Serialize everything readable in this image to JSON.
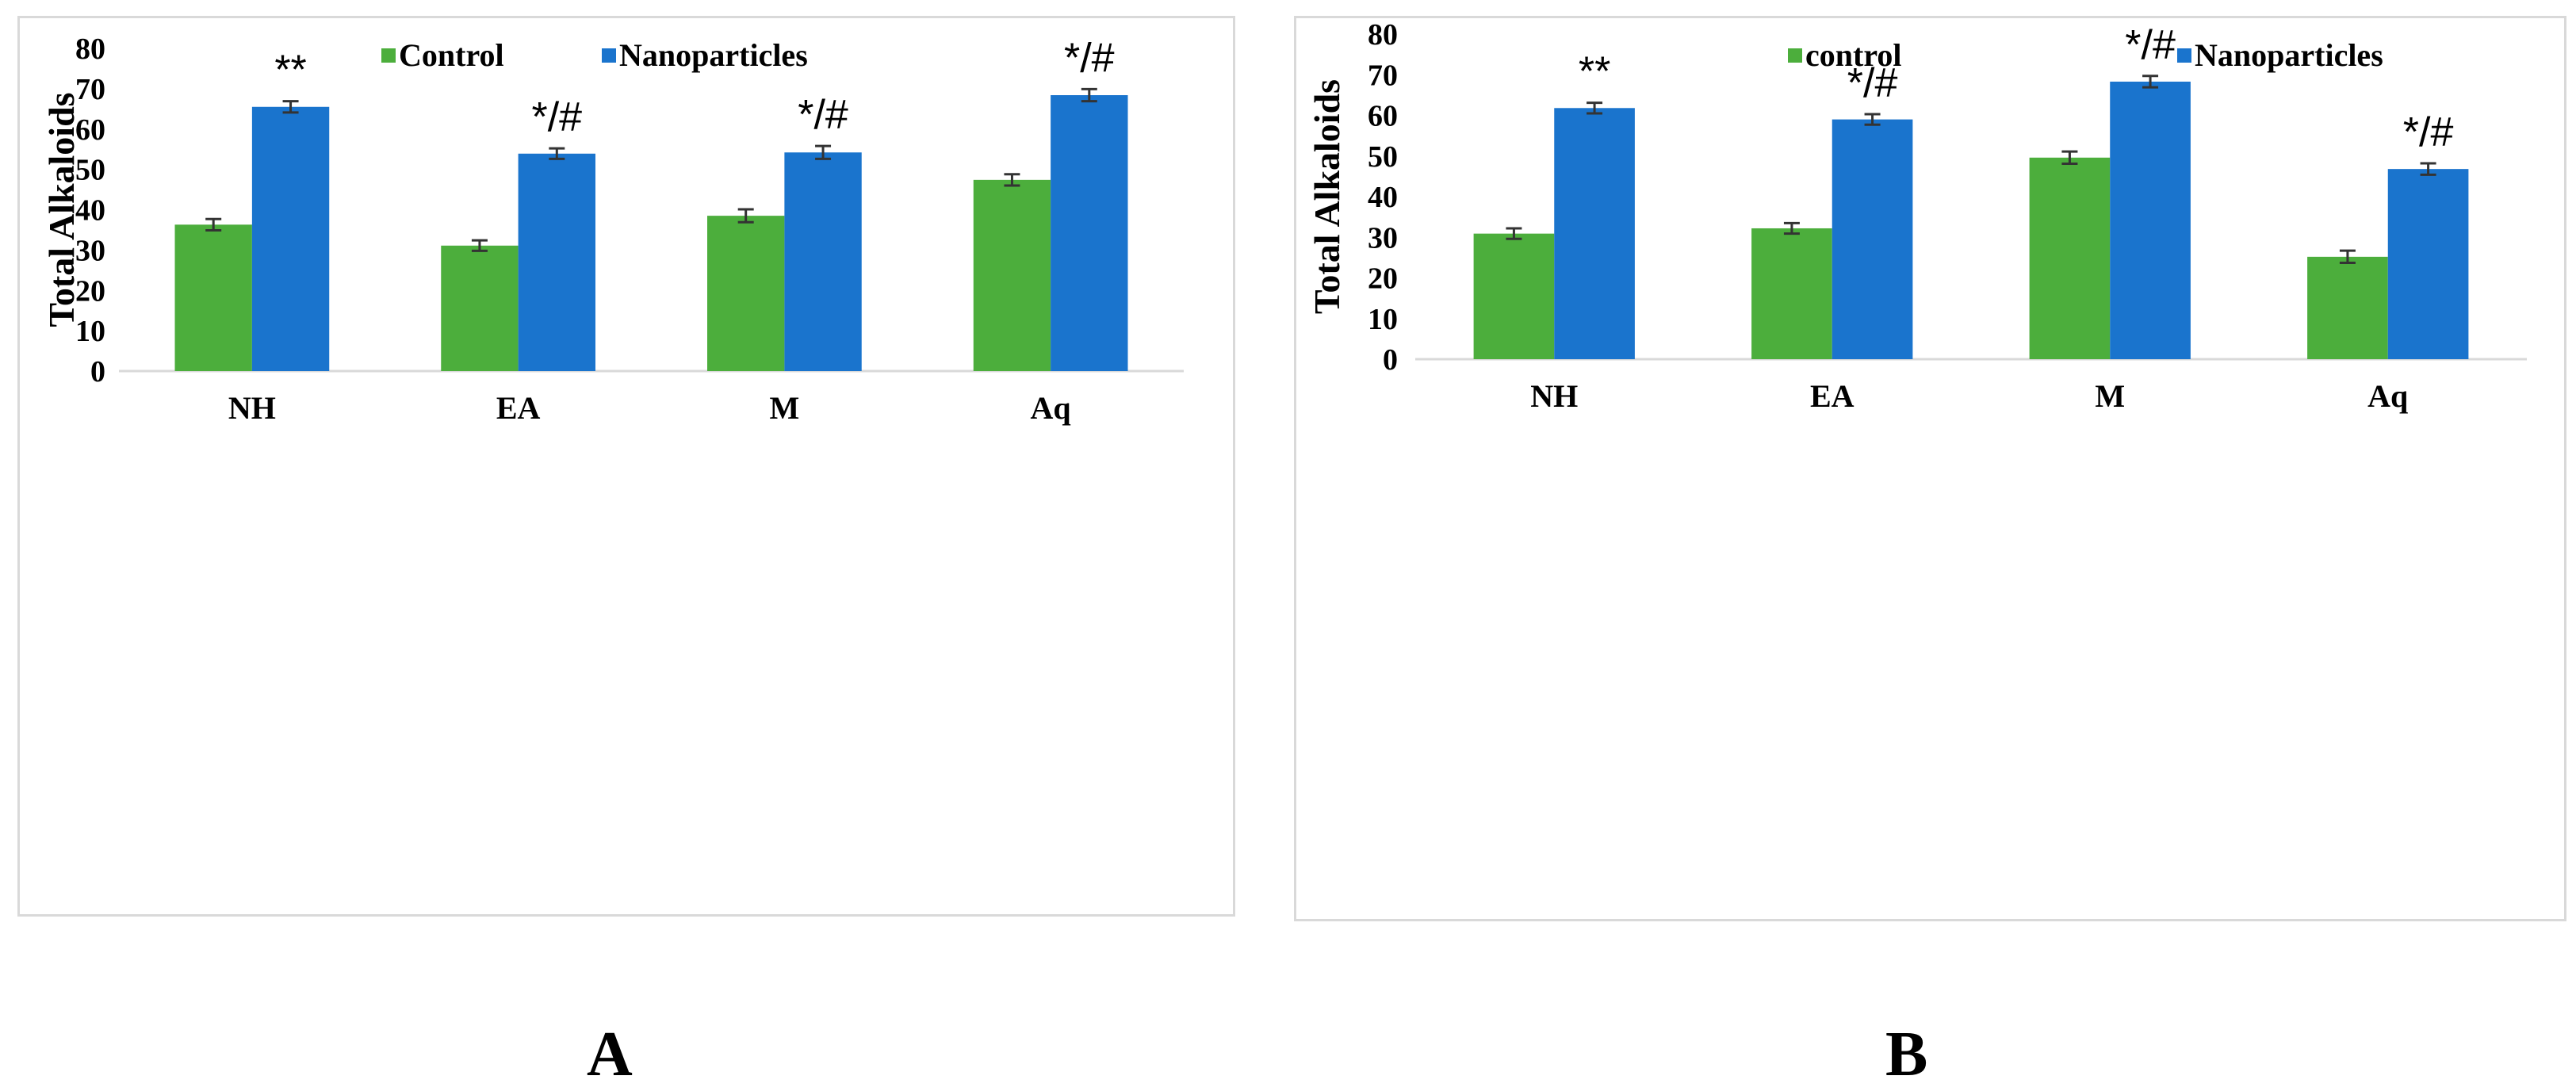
{
  "colors": {
    "control": "#4cae3c",
    "nanoparticles": "#1a74cd",
    "axis": "#d9d9d9",
    "errorbar": "#333333"
  },
  "panel_labels": {
    "a": "A",
    "b": "B"
  },
  "chart_data": [
    {
      "panel": "A",
      "type": "bar",
      "title": "",
      "xlabel": "",
      "ylabel": "Total Alkaloids",
      "ylim": [
        0,
        80
      ],
      "yticks": [
        0,
        10,
        20,
        30,
        40,
        50,
        60,
        70,
        80
      ],
      "grid": false,
      "legend_position": "top-right",
      "categories": [
        "NH",
        "EA",
        "M",
        "Aq"
      ],
      "series": [
        {
          "name": "Control",
          "color_key": "control",
          "values": [
            36.3,
            31.1,
            38.5,
            47.4
          ],
          "errors": [
            1.4,
            1.3,
            1.6,
            1.4
          ]
        },
        {
          "name": "Nanoparticles",
          "color_key": "nanoparticles",
          "values": [
            65.5,
            53.9,
            54.2,
            68.4
          ],
          "errors": [
            1.4,
            1.3,
            1.6,
            1.5
          ]
        }
      ],
      "annotations": [
        "**",
        "*/#",
        "*/#",
        "*/#"
      ]
    },
    {
      "panel": "B",
      "type": "bar",
      "title": "",
      "xlabel": "",
      "ylabel": "Total Alkaloids",
      "ylim": [
        0,
        80
      ],
      "yticks": [
        0,
        10,
        20,
        30,
        40,
        50,
        60,
        70,
        80
      ],
      "grid": false,
      "legend_position": "top-right",
      "categories": [
        "NH",
        "EA",
        "M",
        "Aq"
      ],
      "series": [
        {
          "name": "control",
          "color_key": "control",
          "values": [
            30.9,
            32.2,
            49.6,
            25.2
          ],
          "errors": [
            1.3,
            1.3,
            1.5,
            1.5
          ]
        },
        {
          "name": "Nanoparticles",
          "color_key": "nanoparticles",
          "values": [
            61.8,
            59.0,
            68.3,
            46.8
          ],
          "errors": [
            1.3,
            1.3,
            1.4,
            1.4
          ]
        }
      ],
      "annotations": [
        "**",
        "*/#",
        "*/#",
        "*/#"
      ]
    }
  ]
}
